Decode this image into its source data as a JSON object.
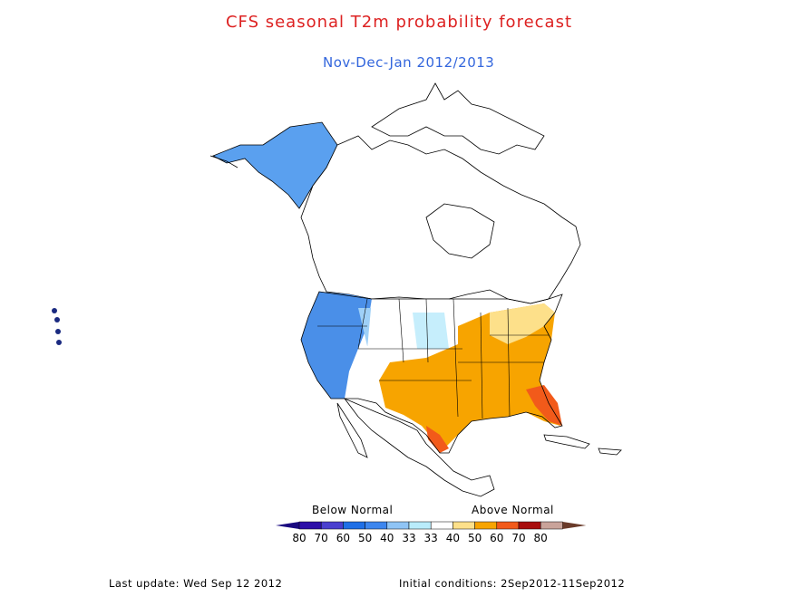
{
  "title": "CFS seasonal T2m probability forecast",
  "subtitle": "Nov-Dec-Jan 2012/2013",
  "legend": {
    "below_label": "Below Normal",
    "above_label": "Above Normal",
    "bins": [
      {
        "label": "80",
        "color": "#2d0fa8"
      },
      {
        "label": "70",
        "color": "#4a3fcf"
      },
      {
        "label": "60",
        "color": "#1f6fe6"
      },
      {
        "label": "50",
        "color": "#3d86ee"
      },
      {
        "label": "40",
        "color": "#8fc4f5"
      },
      {
        "label": "33",
        "color": "#b9ecfb"
      },
      {
        "label": "33",
        "color": "#ffffff"
      },
      {
        "label": "40",
        "color": "#fde08a"
      },
      {
        "label": "50",
        "color": "#f7a400"
      },
      {
        "label": "60",
        "color": "#f25a1a"
      },
      {
        "label": "70",
        "color": "#a80d0d"
      },
      {
        "label": "80",
        "color": "#c9a39a"
      }
    ],
    "end_left_color": "#1a0a80",
    "end_right_color": "#6a3b2a"
  },
  "footer": {
    "last_update": "Last update: Wed Sep 12 2012",
    "initial_conditions": "Initial conditions: 2Sep2012-11Sep2012"
  }
}
